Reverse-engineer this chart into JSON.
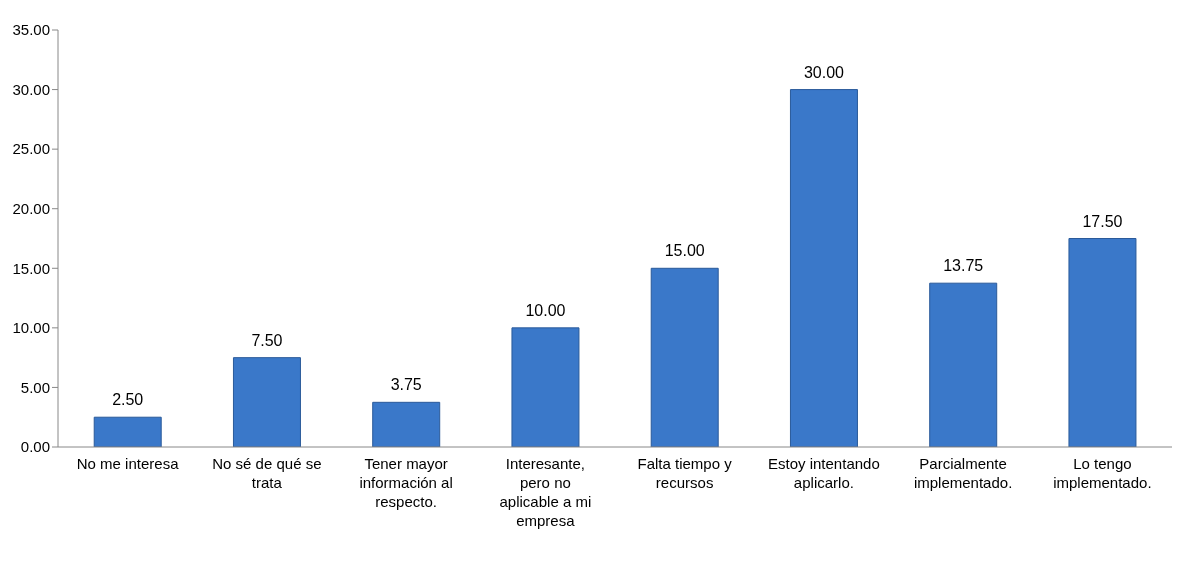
{
  "chart_data": {
    "type": "bar",
    "categories": [
      "No me interesa",
      "No sé de qué se trata",
      "Tener mayor información al respecto.",
      "Interesante, pero no aplicable a mi empresa",
      "Falta tiempo y recursos",
      "Estoy intentando aplicarlo.",
      "Parcialmente implementado.",
      "Lo tengo implementado."
    ],
    "values": [
      2.5,
      7.5,
      3.75,
      10,
      15,
      30,
      13.75,
      17.5
    ],
    "value_labels": [
      "2.50",
      "7.50",
      "3.75",
      "10.00",
      "15.00",
      "30.00",
      "13.75",
      "17.50"
    ],
    "color": "#3a78c9",
    "ylim": [
      0,
      35
    ],
    "yticks": [
      {
        "value": 0,
        "label": "0.00"
      },
      {
        "value": 5,
        "label": "5.00"
      },
      {
        "value": 10,
        "label": "10.00"
      },
      {
        "value": 15,
        "label": "15.00"
      },
      {
        "value": 20,
        "label": "20.00"
      },
      {
        "value": 25,
        "label": "25.00"
      },
      {
        "value": 30,
        "label": "30.00"
      },
      {
        "value": 35,
        "label": "35.00"
      }
    ],
    "grid": false,
    "legend": false
  }
}
